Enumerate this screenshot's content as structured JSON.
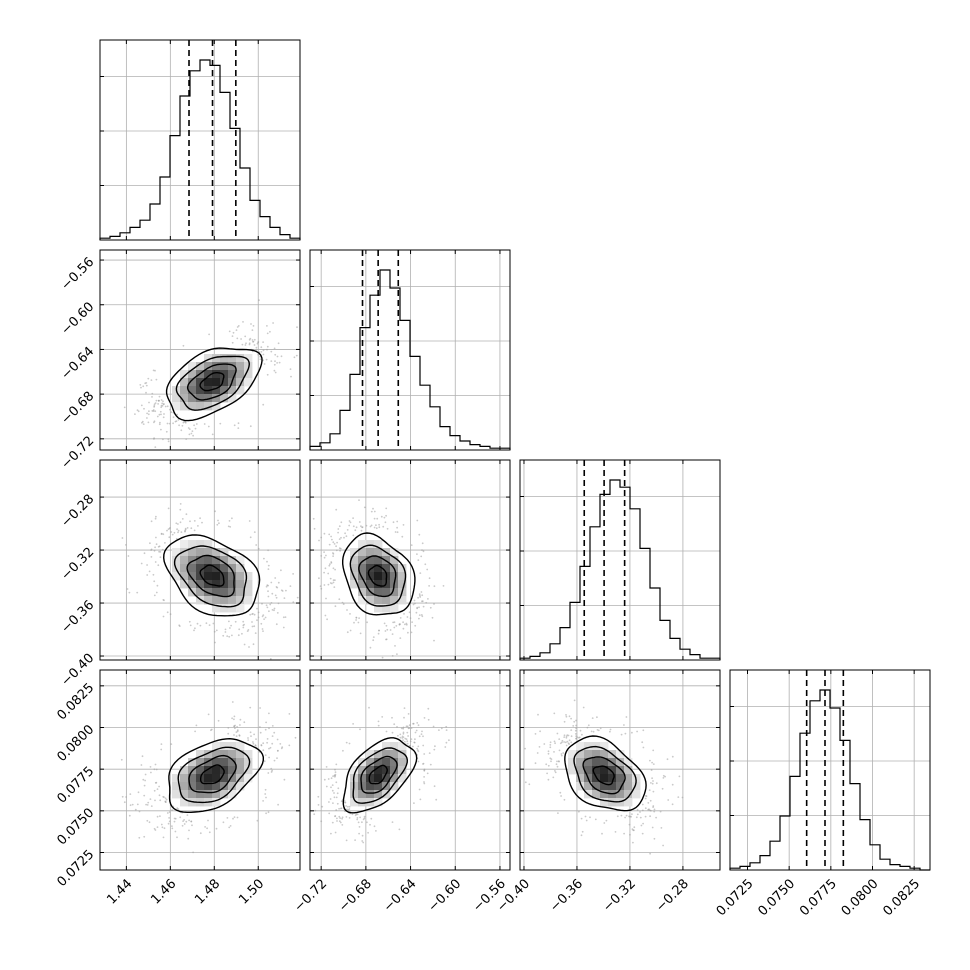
{
  "chart_data": {
    "type": "corner",
    "grid": true,
    "parameters": [
      {
        "ticks": [
          1.44,
          1.46,
          1.48,
          1.5
        ],
        "tick_labels": [
          "1.44",
          "1.46",
          "1.48",
          "1.50"
        ],
        "range": [
          1.428,
          1.519
        ],
        "quantiles": [
          1.4685,
          1.4792,
          1.4898
        ],
        "hist": [
          1,
          2,
          4,
          7,
          11,
          20,
          35,
          58,
          80,
          94,
          100,
          97,
          82,
          62,
          40,
          22,
          13,
          7,
          3,
          1
        ]
      },
      {
        "ticks": [
          -0.72,
          -0.68,
          -0.64,
          -0.6,
          -0.56
        ],
        "tick_labels": [
          "−0.72",
          "−0.68",
          "−0.64",
          "−0.60",
          "−0.56"
        ],
        "range": [
          -0.73,
          -0.551
        ],
        "quantiles": [
          -0.683,
          -0.669,
          -0.651
        ],
        "hist": [
          2,
          4,
          9,
          22,
          42,
          68,
          86,
          100,
          90,
          72,
          52,
          36,
          24,
          13,
          8,
          5,
          3,
          2,
          1,
          1
        ]
      },
      {
        "ticks": [
          -0.4,
          -0.36,
          -0.32,
          -0.28
        ],
        "tick_labels": [
          "−0.40",
          "−0.36",
          "−0.32",
          "−0.28"
        ],
        "range": [
          -0.403,
          -0.252
        ],
        "quantiles": [
          -0.3545,
          -0.3395,
          -0.324
        ],
        "hist": [
          1,
          2,
          4,
          9,
          18,
          32,
          52,
          74,
          92,
          100,
          96,
          84,
          62,
          40,
          22,
          12,
          6,
          3,
          1,
          1
        ]
      },
      {
        "ticks": [
          0.0725,
          0.075,
          0.0775,
          0.08,
          0.0825
        ],
        "tick_labels": [
          "0.0725",
          "0.0750",
          "0.0775",
          "0.0800",
          "0.0825"
        ],
        "range": [
          0.07145,
          0.08345
        ],
        "quantiles": [
          0.07605,
          0.07715,
          0.07825
        ],
        "hist": [
          1,
          2,
          4,
          8,
          16,
          30,
          52,
          76,
          94,
          100,
          90,
          72,
          48,
          28,
          14,
          6,
          3,
          2,
          1,
          0
        ]
      }
    ],
    "pairs": [
      {
        "x": 0,
        "y": 1,
        "correlation": 0.45
      },
      {
        "x": 0,
        "y": 2,
        "correlation": -0.35
      },
      {
        "x": 1,
        "y": 2,
        "correlation": -0.25
      },
      {
        "x": 0,
        "y": 3,
        "correlation": 0.4
      },
      {
        "x": 1,
        "y": 3,
        "correlation": 0.5
      },
      {
        "x": 2,
        "y": 3,
        "correlation": -0.35
      }
    ]
  },
  "colors": {
    "line": "#000000",
    "grid": "#b0b0b0",
    "points": "#9e9e9e"
  }
}
